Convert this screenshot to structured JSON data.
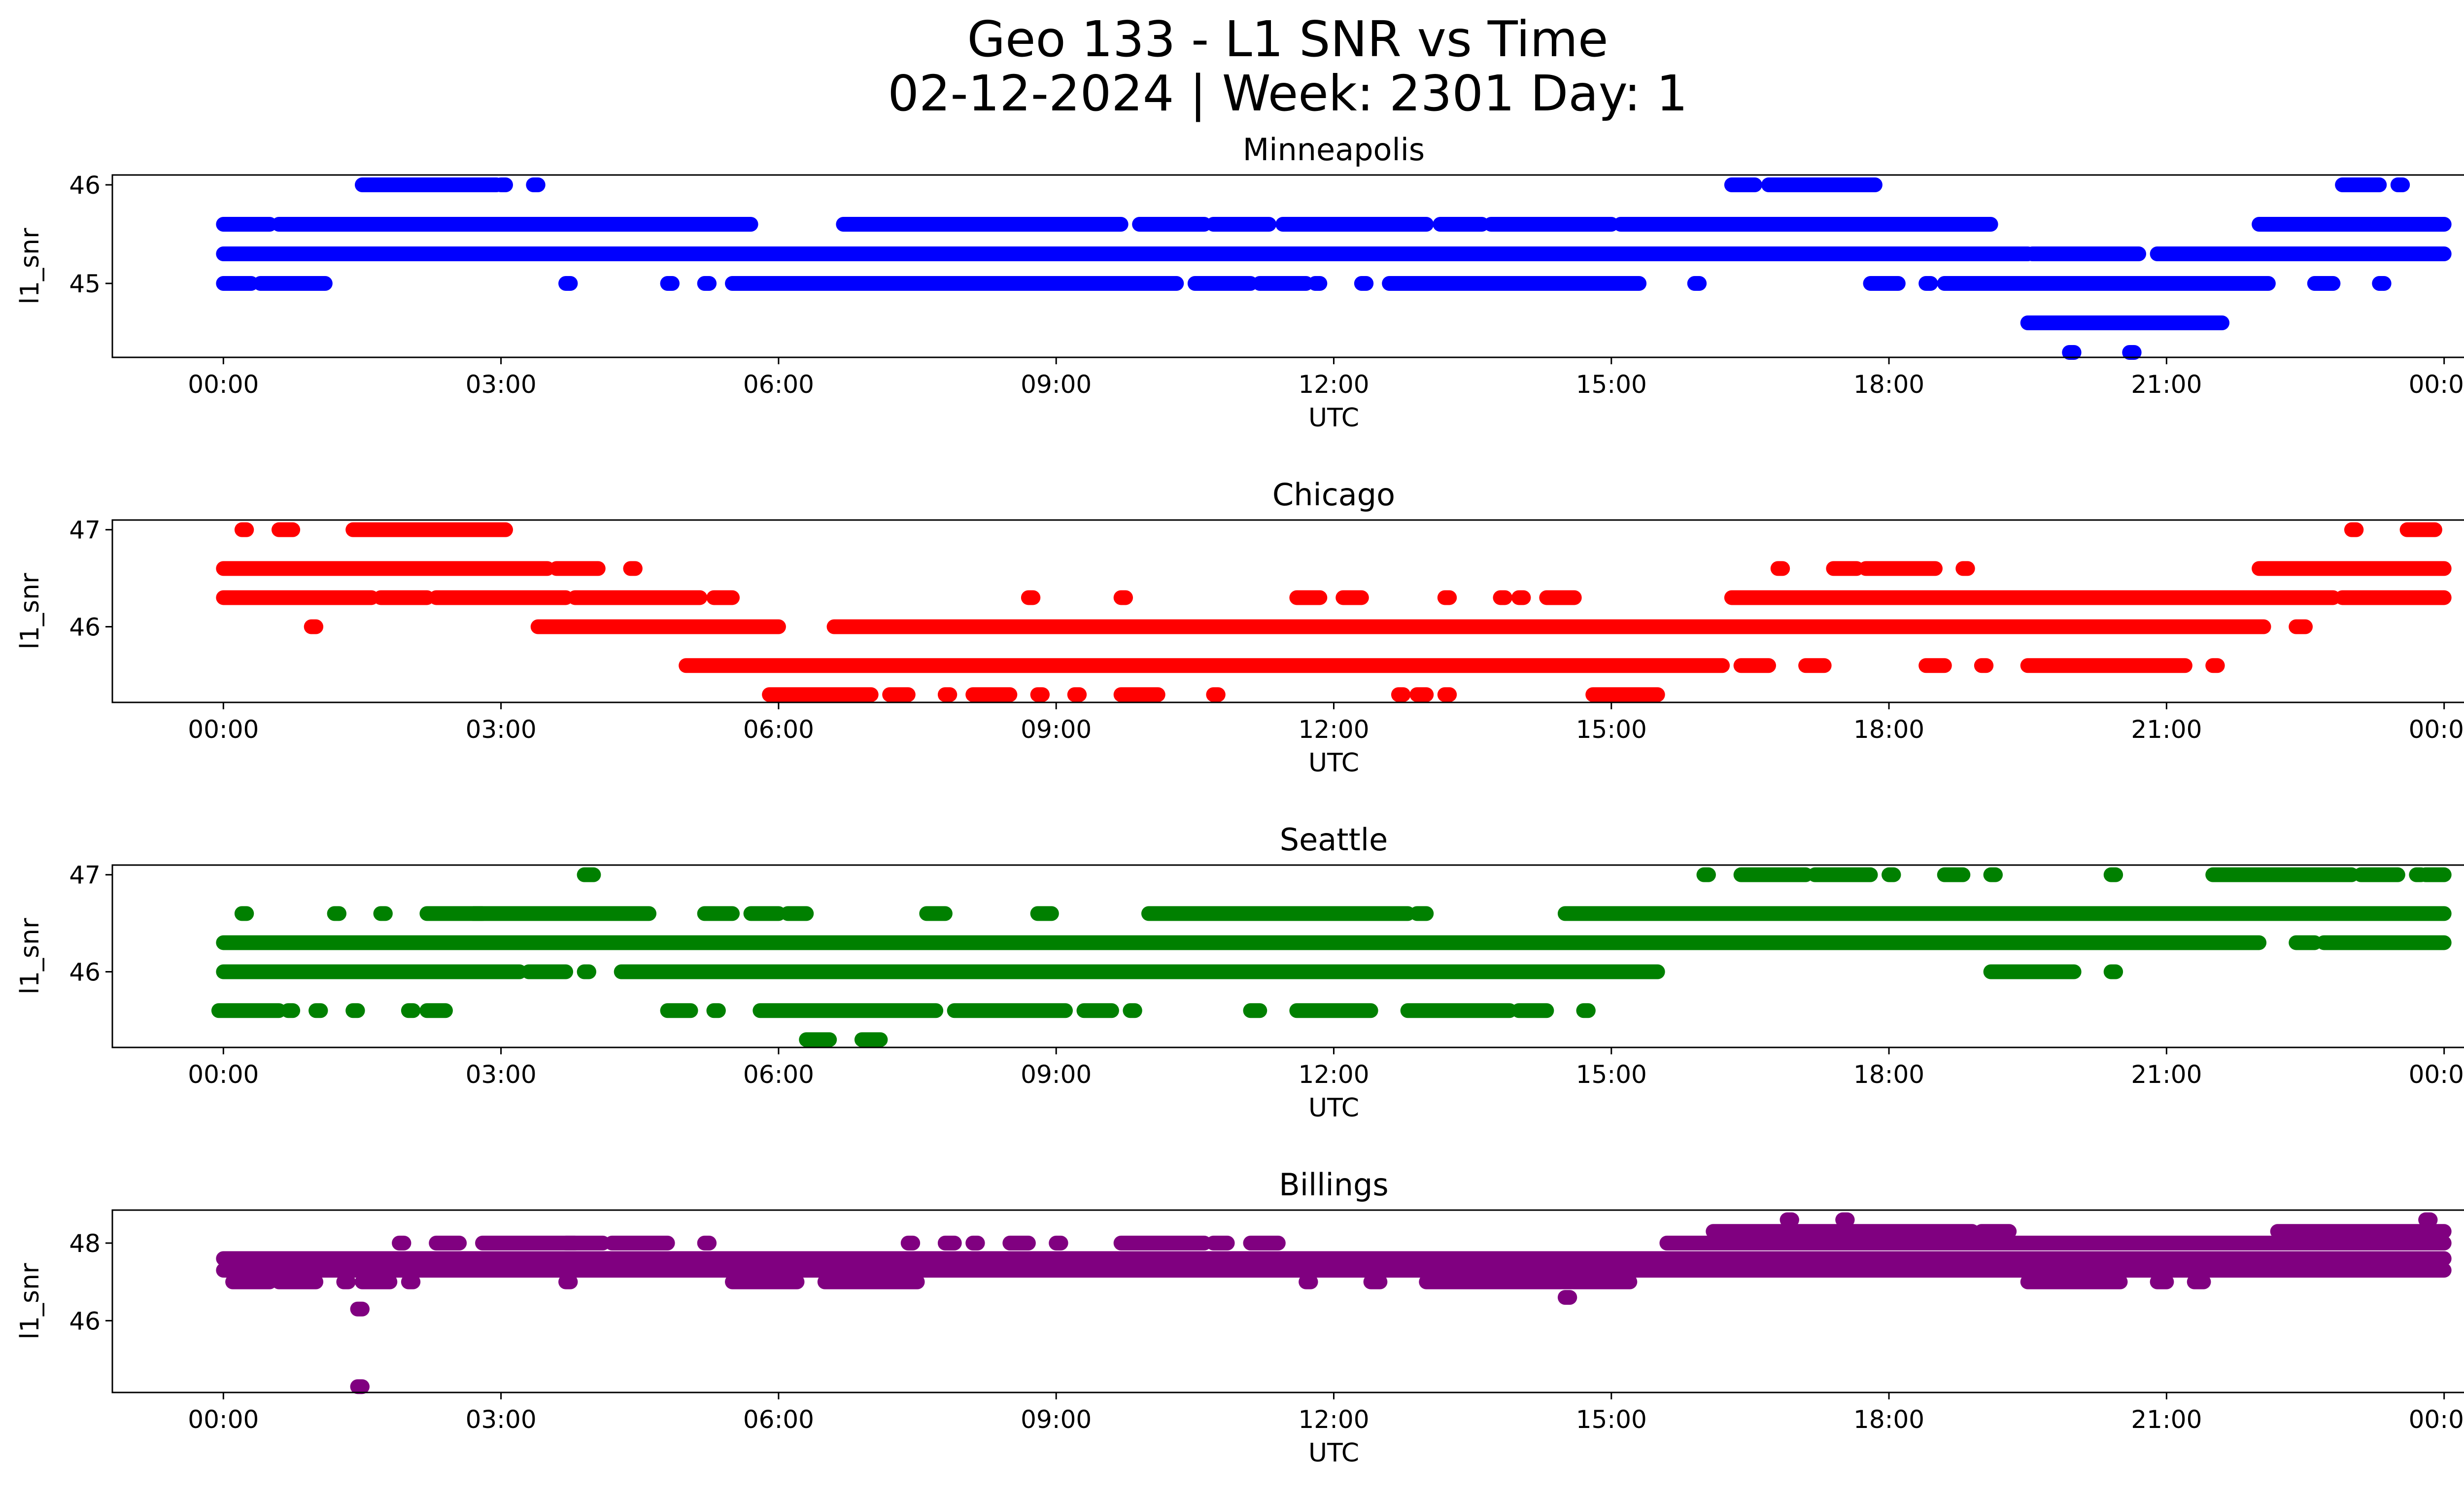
{
  "figure": {
    "title_line1": "Geo 133 - L1 SNR vs Time",
    "title_line2": "02-12-2024 | Week: 2301 Day: 1"
  },
  "chart_data": [
    {
      "type": "scatter",
      "title": "Minneapolis",
      "xlabel": "UTC",
      "ylabel": "l1_snr",
      "color": "#0000ff",
      "x_range_hours": [
        -1.2,
        25.2
      ],
      "ylim": [
        44.25,
        46.1
      ],
      "x_ticks": [
        "00:00",
        "03:00",
        "06:00",
        "09:00",
        "12:00",
        "15:00",
        "18:00",
        "21:00",
        "00:00"
      ],
      "y_ticks": [
        45,
        46
      ],
      "levels": [
        {
          "y": 46.0,
          "segments": [
            [
              1.5,
              2.95
            ],
            [
              3.0,
              3.05
            ],
            [
              3.35,
              3.4
            ],
            [
              16.3,
              16.55
            ],
            [
              16.7,
              17.85
            ],
            [
              22.9,
              23.3
            ],
            [
              23.5,
              23.55
            ]
          ]
        },
        {
          "y": 45.6,
          "segments": [
            [
              0.0,
              0.5
            ],
            [
              0.6,
              5.7
            ],
            [
              6.7,
              9.7
            ],
            [
              9.9,
              10.6
            ],
            [
              10.7,
              11.3
            ],
            [
              11.45,
              13.0
            ],
            [
              13.15,
              13.6
            ],
            [
              13.7,
              15.0
            ],
            [
              15.1,
              19.1
            ],
            [
              22.0,
              24.0
            ]
          ]
        },
        {
          "y": 45.3,
          "segments": [
            [
              0.0,
              19.5
            ],
            [
              19.55,
              20.7
            ],
            [
              20.9,
              24.0
            ]
          ]
        },
        {
          "y": 45.0,
          "segments": [
            [
              0.0,
              0.3
            ],
            [
              0.4,
              1.1
            ],
            [
              3.7,
              3.75
            ],
            [
              4.8,
              4.85
            ],
            [
              5.2,
              5.25
            ],
            [
              5.5,
              10.3
            ],
            [
              10.5,
              11.1
            ],
            [
              11.2,
              11.7
            ],
            [
              11.8,
              11.85
            ],
            [
              12.3,
              12.35
            ],
            [
              12.6,
              15.3
            ],
            [
              15.9,
              15.95
            ],
            [
              17.8,
              18.1
            ],
            [
              18.4,
              18.45
            ],
            [
              18.6,
              22.1
            ],
            [
              22.6,
              22.8
            ],
            [
              23.3,
              23.35
            ]
          ]
        },
        {
          "y": 44.6,
          "segments": [
            [
              19.5,
              21.6
            ]
          ]
        },
        {
          "y": 44.3,
          "segments": [
            [
              19.95,
              20.0
            ],
            [
              20.6,
              20.65
            ]
          ]
        }
      ]
    },
    {
      "type": "scatter",
      "title": "Chicago",
      "xlabel": "UTC",
      "ylabel": "l1_snr",
      "color": "#ff0000",
      "x_range_hours": [
        -1.2,
        25.2
      ],
      "ylim": [
        45.22,
        47.1
      ],
      "x_ticks": [
        "00:00",
        "03:00",
        "06:00",
        "09:00",
        "12:00",
        "15:00",
        "18:00",
        "21:00",
        "00:00"
      ],
      "y_ticks": [
        46,
        47
      ],
      "levels": [
        {
          "y": 47.0,
          "segments": [
            [
              0.2,
              0.25
            ],
            [
              0.6,
              0.75
            ],
            [
              1.4,
              3.05
            ],
            [
              23.0,
              23.05
            ],
            [
              23.6,
              23.9
            ]
          ]
        },
        {
          "y": 46.6,
          "segments": [
            [
              0.0,
              3.5
            ],
            [
              3.6,
              4.05
            ],
            [
              4.4,
              4.45
            ],
            [
              16.8,
              16.85
            ],
            [
              17.4,
              17.65
            ],
            [
              17.75,
              18.5
            ],
            [
              18.8,
              18.85
            ],
            [
              22.0,
              24.0
            ]
          ]
        },
        {
          "y": 46.3,
          "segments": [
            [
              0.0,
              1.6
            ],
            [
              1.7,
              2.2
            ],
            [
              2.3,
              3.7
            ],
            [
              3.8,
              5.15
            ],
            [
              5.3,
              5.5
            ],
            [
              8.7,
              8.75
            ],
            [
              9.7,
              9.75
            ],
            [
              11.6,
              11.85
            ],
            [
              12.1,
              12.3
            ],
            [
              13.2,
              13.25
            ],
            [
              13.8,
              13.85
            ],
            [
              14.0,
              14.05
            ],
            [
              14.3,
              14.6
            ],
            [
              16.3,
              22.8
            ],
            [
              22.9,
              24.0
            ]
          ]
        },
        {
          "y": 46.0,
          "segments": [
            [
              0.95,
              1.0
            ],
            [
              3.4,
              6.0
            ],
            [
              6.6,
              22.05
            ],
            [
              22.4,
              22.5
            ]
          ]
        },
        {
          "y": 45.6,
          "segments": [
            [
              5.0,
              16.2
            ],
            [
              16.4,
              16.7
            ],
            [
              17.1,
              17.3
            ],
            [
              18.4,
              18.6
            ],
            [
              19.0,
              19.05
            ],
            [
              19.5,
              21.2
            ],
            [
              21.5,
              21.55
            ]
          ]
        },
        {
          "y": 45.3,
          "segments": [
            [
              5.9,
              7.0
            ],
            [
              7.2,
              7.4
            ],
            [
              7.8,
              7.85
            ],
            [
              8.1,
              8.5
            ],
            [
              8.8,
              8.85
            ],
            [
              9.2,
              9.25
            ],
            [
              9.7,
              10.1
            ],
            [
              10.7,
              10.75
            ],
            [
              12.7,
              12.75
            ],
            [
              12.9,
              13.0
            ],
            [
              13.2,
              13.25
            ],
            [
              14.8,
              15.5
            ]
          ]
        }
      ]
    },
    {
      "type": "scatter",
      "title": "Seattle",
      "xlabel": "UTC",
      "ylabel": "l1_snr",
      "color": "#008000",
      "x_range_hours": [
        -1.2,
        25.2
      ],
      "ylim": [
        45.22,
        47.1
      ],
      "x_ticks": [
        "00:00",
        "03:00",
        "06:00",
        "09:00",
        "12:00",
        "15:00",
        "18:00",
        "21:00",
        "00:00"
      ],
      "y_ticks": [
        46,
        47
      ],
      "levels": [
        {
          "y": 47.0,
          "segments": [
            [
              3.9,
              4.0
            ],
            [
              16.0,
              16.05
            ],
            [
              16.4,
              17.1
            ],
            [
              17.2,
              17.8
            ],
            [
              18.0,
              18.05
            ],
            [
              18.6,
              18.8
            ],
            [
              19.1,
              19.15
            ],
            [
              20.4,
              20.45
            ],
            [
              21.5,
              23.0
            ],
            [
              23.1,
              23.5
            ],
            [
              23.7,
              23.75
            ],
            [
              23.8,
              24.0
            ]
          ]
        },
        {
          "y": 46.6,
          "segments": [
            [
              0.2,
              0.25
            ],
            [
              1.2,
              1.25
            ],
            [
              1.7,
              1.75
            ],
            [
              2.2,
              2.8
            ],
            [
              2.7,
              4.6
            ],
            [
              5.2,
              5.5
            ],
            [
              5.7,
              6.0
            ],
            [
              6.1,
              6.3
            ],
            [
              7.6,
              7.8
            ],
            [
              8.8,
              8.95
            ],
            [
              10.0,
              12.8
            ],
            [
              12.9,
              13.0
            ],
            [
              14.5,
              24.0
            ]
          ]
        },
        {
          "y": 46.3,
          "segments": [
            [
              0.0,
              22.0
            ],
            [
              22.4,
              22.6
            ],
            [
              22.7,
              24.0
            ]
          ]
        },
        {
          "y": 46.0,
          "segments": [
            [
              0.0,
              3.2
            ],
            [
              3.3,
              3.7
            ],
            [
              3.9,
              3.95
            ],
            [
              4.3,
              15.5
            ],
            [
              19.1,
              20.0
            ],
            [
              20.4,
              20.45
            ]
          ]
        },
        {
          "y": 45.6,
          "segments": [
            [
              -0.05,
              0.6
            ],
            [
              0.7,
              0.75
            ],
            [
              1.0,
              1.05
            ],
            [
              1.4,
              1.45
            ],
            [
              2.0,
              2.05
            ],
            [
              2.2,
              2.4
            ],
            [
              4.8,
              5.05
            ],
            [
              5.3,
              5.35
            ],
            [
              5.8,
              7.7
            ],
            [
              7.9,
              9.1
            ],
            [
              9.3,
              9.6
            ],
            [
              9.8,
              9.85
            ],
            [
              11.1,
              11.2
            ],
            [
              11.6,
              12.4
            ],
            [
              12.8,
              13.9
            ],
            [
              14.0,
              14.3
            ],
            [
              14.7,
              14.75
            ]
          ]
        },
        {
          "y": 45.3,
          "segments": [
            [
              6.3,
              6.55
            ],
            [
              6.9,
              7.1
            ]
          ]
        }
      ]
    },
    {
      "type": "scatter",
      "title": "Billings",
      "xlabel": "UTC",
      "ylabel": "l1_snr",
      "color": "#800080",
      "x_range_hours": [
        -1.2,
        25.2
      ],
      "ylim": [
        44.15,
        48.85
      ],
      "x_ticks": [
        "00:00",
        "03:00",
        "06:00",
        "09:00",
        "12:00",
        "15:00",
        "18:00",
        "21:00",
        "00:00"
      ],
      "y_ticks": [
        46,
        48
      ],
      "levels": [
        {
          "y": 48.6,
          "segments": [
            [
              16.9,
              16.95
            ],
            [
              17.5,
              17.55
            ],
            [
              23.8,
              23.85
            ]
          ]
        },
        {
          "y": 48.3,
          "segments": [
            [
              16.1,
              18.9
            ],
            [
              19.0,
              19.3
            ],
            [
              22.2,
              24.0
            ]
          ]
        },
        {
          "y": 48.0,
          "segments": [
            [
              1.9,
              1.95
            ],
            [
              2.3,
              2.55
            ],
            [
              2.8,
              3.8
            ],
            [
              3.7,
              4.1
            ],
            [
              4.2,
              4.8
            ],
            [
              5.2,
              5.25
            ],
            [
              7.4,
              7.45
            ],
            [
              7.8,
              7.9
            ],
            [
              8.1,
              8.15
            ],
            [
              8.5,
              8.7
            ],
            [
              9.0,
              9.05
            ],
            [
              9.7,
              10.6
            ],
            [
              10.7,
              10.85
            ],
            [
              11.1,
              11.4
            ],
            [
              15.6,
              24.0
            ]
          ]
        },
        {
          "y": 47.6,
          "segments": [
            [
              0.0,
              24.0
            ]
          ]
        },
        {
          "y": 47.3,
          "segments": [
            [
              0.0,
              24.0
            ]
          ]
        },
        {
          "y": 47.0,
          "segments": [
            [
              0.1,
              0.5
            ],
            [
              0.6,
              1.0
            ],
            [
              1.3,
              1.35
            ],
            [
              1.5,
              1.8
            ],
            [
              2.0,
              2.05
            ],
            [
              3.7,
              3.75
            ],
            [
              5.5,
              6.2
            ],
            [
              6.5,
              7.5
            ],
            [
              11.7,
              11.75
            ],
            [
              12.4,
              12.5
            ],
            [
              13.0,
              15.2
            ],
            [
              19.5,
              20.5
            ],
            [
              20.9,
              21.0
            ],
            [
              21.3,
              21.4
            ]
          ]
        },
        {
          "y": 46.6,
          "segments": [
            [
              14.5,
              14.55
            ]
          ]
        },
        {
          "y": 46.3,
          "segments": [
            [
              1.45,
              1.5
            ]
          ]
        },
        {
          "y": 44.3,
          "segments": [
            [
              1.45,
              1.5
            ]
          ]
        }
      ]
    }
  ]
}
